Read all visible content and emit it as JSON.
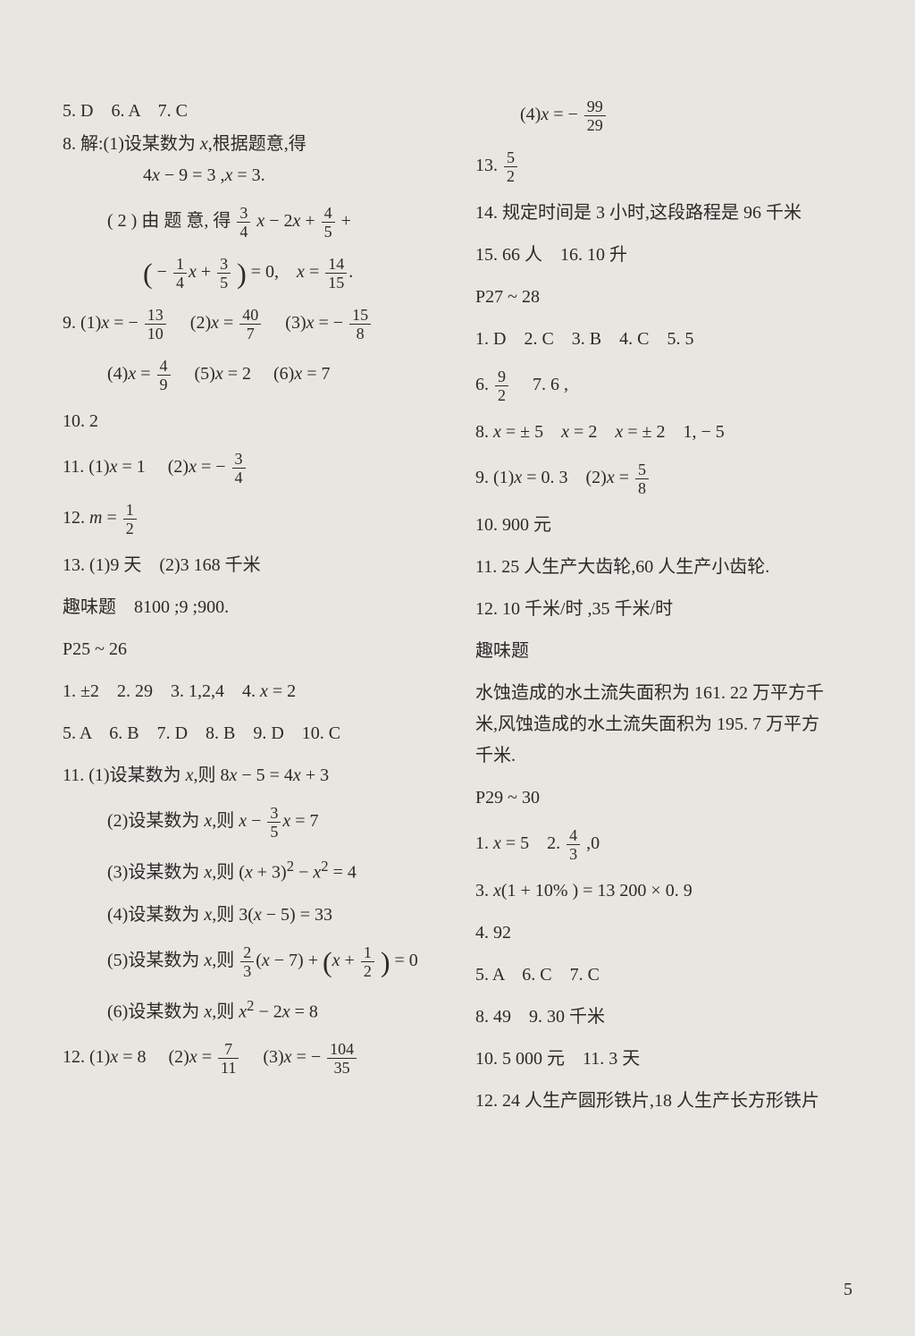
{
  "page_number": "5",
  "left": {
    "l0": "5. D　6. A　7. C",
    "l1a": "8. 解:(1)设某数为 ",
    "l1b": ",根据题意,得",
    "l2a": "4",
    "l2b": " − 9 = 3 ,",
    "l2c": " = 3.",
    "l3a": "( 2 )  由 题 意,  得 ",
    "l4a": "= 0,　",
    "l5_1": "9. (1)",
    "l5_2": "(2)",
    "l5_3": "(3)",
    "l6_1": "(4)",
    "l6_2": "(5)",
    "l6_2v": " = 2",
    "l6_3": "(6)",
    "l6_3v": " = 7",
    "l7": "10. 2",
    "l8_1": "11. (1)",
    "l8_1v": " = 1",
    "l8_2": "(2)",
    "l9a": "12. ",
    "l9b": " = ",
    "l10": "13. (1)9 天　(2)3 168 千米",
    "l11": "趣味题　8100 ;9 ;900.",
    "l12": "P25 ~ 26",
    "l13": "1. ±2　2. 29　3. 1,2,4　4. ",
    "l13v": " = 2",
    "l14": "5. A　6. B　7. D　8. B　9. D　10. C",
    "l15a": "11. (1)设某数为 ",
    "l15b": ",则 8",
    "l15c": " − 5 = 4",
    "l15d": " + 3",
    "l16a": "(2)设某数为 ",
    "l16b": ",则 ",
    "l16c": " = 7",
    "l17a": "(3)设某数为 ",
    "l17b": ",则 (",
    "l17c": " + 3)",
    "l17d": " − ",
    "l17e": " = 4",
    "l18a": "(4)设某数为 ",
    "l18b": ",则 3(",
    "l18c": " − 5) = 33",
    "l19a": "(5)设某数为 ",
    "l19b": ",则 ",
    "l19c": "(",
    "l19d": " − 7) + ",
    "l19e": " = 0",
    "l20a": "(6)设某数为 ",
    "l20b": ",则 ",
    "l20c": " − 2",
    "l20d": " = 8",
    "l21_1": "12. (1)",
    "l21_1v": " = 8",
    "l21_2": "(2)",
    "l21_3": "(3)",
    "f_3_4_n": "3",
    "f_3_4_d": "4",
    "f_4_5_n": "4",
    "f_4_5_d": "5",
    "f_1_4_n": "1",
    "f_1_4_d": "4",
    "f_3_5_n": "3",
    "f_3_5_d": "5",
    "f_14_15_n": "14",
    "f_14_15_d": "15",
    "f_13_10_n": "13",
    "f_13_10_d": "10",
    "f_40_7_n": "40",
    "f_40_7_d": "7",
    "f_15_8_n": "15",
    "f_15_8_d": "8",
    "f_4_9_n": "4",
    "f_4_9_d": "9",
    "f_3_4b_n": "3",
    "f_3_4b_d": "4",
    "f_1_2_n": "1",
    "f_1_2_d": "2",
    "f_3_5b_n": "3",
    "f_3_5b_d": "5",
    "f_2_3_n": "2",
    "f_2_3_d": "3",
    "f_1_2b_n": "1",
    "f_1_2b_d": "2",
    "f_7_11_n": "7",
    "f_7_11_d": "11",
    "f_104_35_n": "104",
    "f_104_35_d": "35",
    "var_x": "x",
    "var_m": "m",
    "sup2": "2"
  },
  "right": {
    "r0a": "(4)",
    "r1": "13. ",
    "r2": "14. 规定时间是 3 小时,这段路程是 96 千米",
    "r3": "15. 66 人　16. 10 升",
    "r4": "P27 ~ 28",
    "r5": "1. D　2. C　3. B　4. C　5. 5",
    "r6a": "6. ",
    "r6b": "　7. 6 ,",
    "r7a": "8. ",
    "r7b": " = ± 5　",
    "r7c": " = 2　",
    "r7d": " = ± 2　1, − 5",
    "r8a": "9. (1)",
    "r8b": " = 0. 3　(2)",
    "r9": "10. 900 元",
    "r10": "11. 25 人生产大齿轮,60 人生产小齿轮.",
    "r11": "12. 10 千米/时 ,35 千米/时",
    "r12": "趣味题",
    "r13": "水蚀造成的水土流失面积为 161. 22 万平方千",
    "r14": "米,风蚀造成的水土流失面积为 195. 7 万平方",
    "r15": "千米.",
    "r16": "P29 ~ 30",
    "r17a": "1. ",
    "r17b": " = 5　2. ",
    "r17c": " ,0",
    "r18a": "3. ",
    "r18b": "(1 + 10% ) = 13 200 × 0. 9",
    "r19": "4. 92",
    "r20": "5. A　6. C　7. C",
    "r21": "8. 49　9. 30 千米",
    "r22": "10. 5 000 元　11. 3 天",
    "r23": "12. 24 人生产圆形铁片,18 人生产长方形铁片",
    "f_99_29_n": "99",
    "f_99_29_d": "29",
    "f_5_2_n": "5",
    "f_5_2_d": "2",
    "f_9_2_n": "9",
    "f_9_2_d": "2",
    "f_5_8_n": "5",
    "f_5_8_d": "8",
    "f_4_3_n": "4",
    "f_4_3_d": "3",
    "var_x": "x"
  }
}
